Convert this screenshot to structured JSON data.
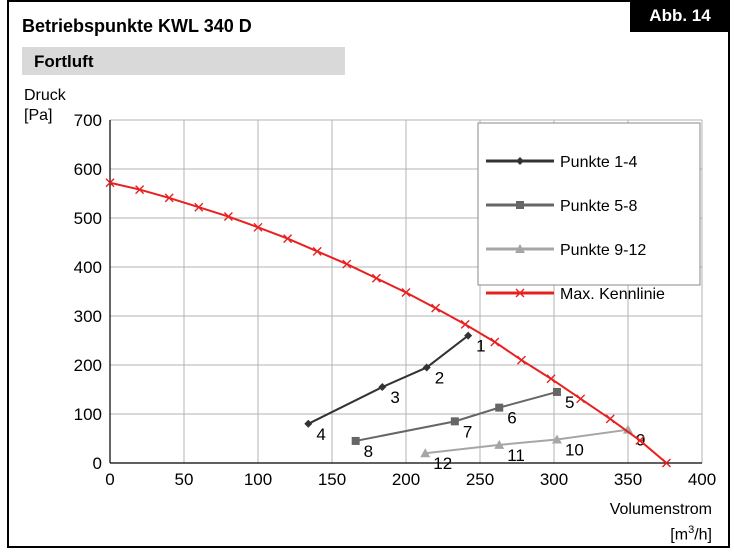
{
  "header": {
    "title": "Betriebspunkte KWL 340 D",
    "badge": "Abb. 14",
    "section": "Fortluft"
  },
  "chart_data": {
    "type": "line",
    "ylabel_line1": "Druck",
    "ylabel_line2": "[Pa]",
    "xlabel_line1": "Volumenstrom",
    "xlabel_unit_pre": "[m",
    "xlabel_unit_sup": "3",
    "xlabel_unit_post": "/h]",
    "xlim": [
      0,
      400
    ],
    "ylim": [
      0,
      700
    ],
    "xticks": [
      0,
      50,
      100,
      150,
      200,
      250,
      300,
      350,
      400
    ],
    "yticks": [
      0,
      100,
      200,
      300,
      400,
      500,
      600,
      700
    ],
    "grid": true,
    "legend_position": "top-right",
    "series": [
      {
        "name": "Punkte 1-4",
        "color": "#333333",
        "marker": "diamond",
        "points": [
          [
            134,
            80
          ],
          [
            184,
            155
          ],
          [
            214,
            195
          ],
          [
            242,
            260
          ]
        ],
        "labels": [
          {
            "text": "4",
            "x": 134,
            "y": 80
          },
          {
            "text": "3",
            "x": 184,
            "y": 155
          },
          {
            "text": "2",
            "x": 214,
            "y": 195
          },
          {
            "text": "1",
            "x": 242,
            "y": 260
          }
        ]
      },
      {
        "name": "Punkte 5-8",
        "color": "#666666",
        "marker": "square",
        "points": [
          [
            166,
            45
          ],
          [
            233,
            85
          ],
          [
            263,
            113
          ],
          [
            302,
            145
          ]
        ],
        "labels": [
          {
            "text": "8",
            "x": 166,
            "y": 45
          },
          {
            "text": "7",
            "x": 233,
            "y": 85
          },
          {
            "text": "6",
            "x": 263,
            "y": 113
          },
          {
            "text": "5",
            "x": 302,
            "y": 145
          }
        ]
      },
      {
        "name": "Punkte 9-12",
        "color": "#a6a6a6",
        "marker": "triangle",
        "points": [
          [
            213,
            20
          ],
          [
            263,
            37
          ],
          [
            302,
            48
          ],
          [
            350,
            68
          ]
        ],
        "labels": [
          {
            "text": "12",
            "x": 213,
            "y": 20
          },
          {
            "text": "11",
            "x": 263,
            "y": 37
          },
          {
            "text": "10",
            "x": 302,
            "y": 48
          },
          {
            "text": "9",
            "x": 350,
            "y": 68
          }
        ]
      },
      {
        "name": "Max. Kennlinie",
        "color": "#e8201f",
        "marker": "x",
        "points": [
          [
            0,
            572
          ],
          [
            20,
            558
          ],
          [
            40,
            541
          ],
          [
            60,
            522
          ],
          [
            80,
            503
          ],
          [
            100,
            481
          ],
          [
            120,
            458
          ],
          [
            140,
            432
          ],
          [
            160,
            406
          ],
          [
            180,
            377
          ],
          [
            200,
            348
          ],
          [
            220,
            316
          ],
          [
            240,
            283
          ],
          [
            260,
            247
          ],
          [
            278,
            210
          ],
          [
            298,
            172
          ],
          [
            318,
            131
          ],
          [
            338,
            90
          ],
          [
            358,
            46
          ],
          [
            376,
            0
          ]
        ],
        "labels": []
      }
    ]
  }
}
